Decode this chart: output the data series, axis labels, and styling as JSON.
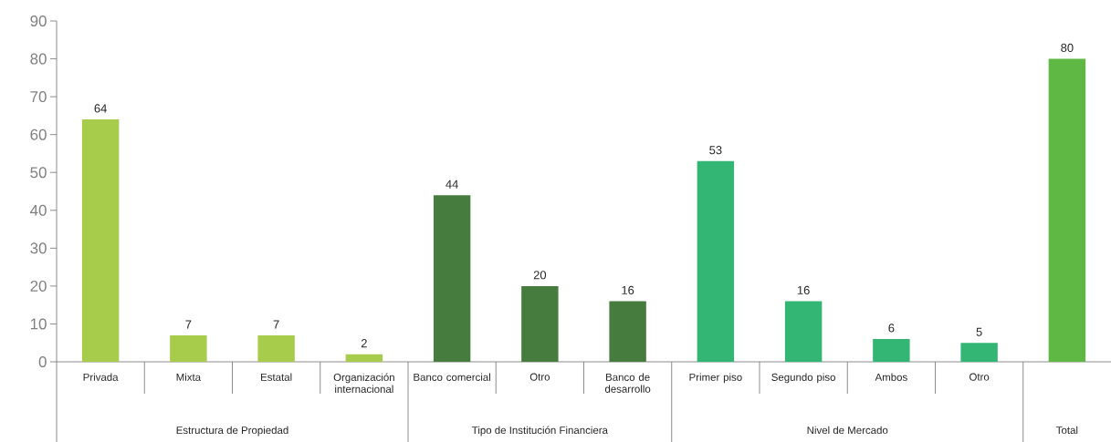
{
  "chart_data": {
    "type": "bar",
    "categories": [
      "Privada",
      "Mixta",
      "Estatal",
      "Organización internacional",
      "Banco comercial",
      "Otro",
      "Banco de desarrollo",
      "Primer piso",
      "Segundo piso",
      "Ambos",
      "Otro",
      null
    ],
    "values": [
      64,
      7,
      7,
      2,
      44,
      20,
      16,
      53,
      16,
      6,
      5,
      80
    ],
    "colors": [
      "#a7cb4a",
      "#a7cb4a",
      "#a7cb4a",
      "#a7cb4a",
      "#467c3e",
      "#467c3e",
      "#467c3e",
      "#33b573",
      "#33b573",
      "#33b573",
      "#33b573",
      "#5fb843"
    ],
    "ylim": [
      0,
      90
    ],
    "yticks": [
      0,
      10,
      20,
      30,
      40,
      50,
      60,
      70,
      80,
      90
    ],
    "data_labels": true,
    "annotations": [
      "Estructura de Propiedad",
      "Tipo de Institución Financiera",
      "Nivel de Mercado",
      "Total"
    ]
  }
}
